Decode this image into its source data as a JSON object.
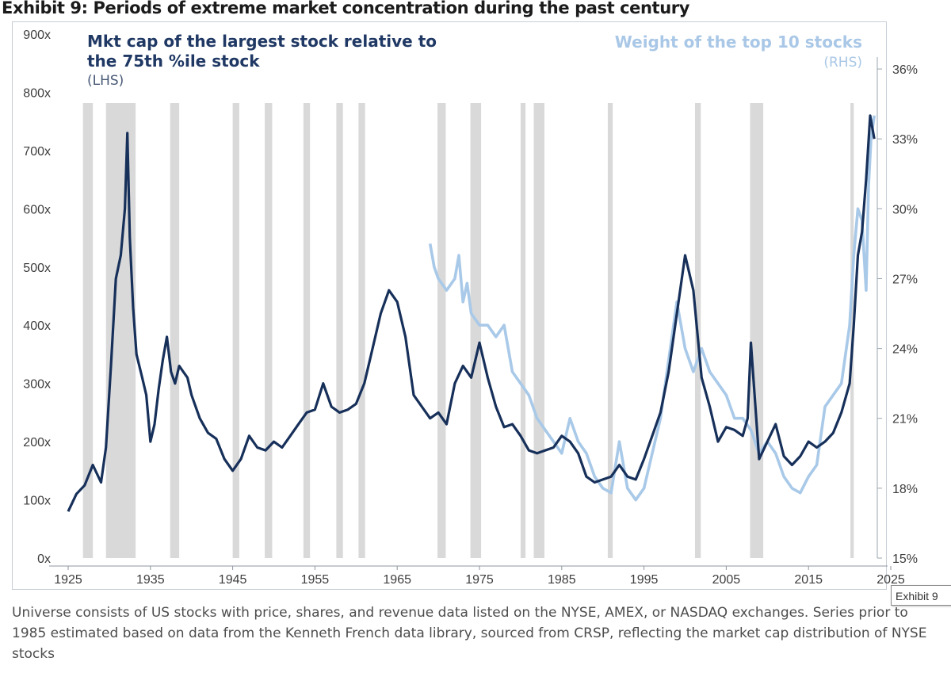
{
  "exhibit": {
    "title": "Exhibit 9: Periods of extreme market concentration during the past century",
    "tooltip": "Exhibit 9",
    "footnote": "Universe consists of US stocks with price, shares, and revenue data listed on the NYSE, AMEX, or NASDAQ exchanges. Series prior to 1985 estimated based on data from the Kenneth French data library, sourced from CRSP, reflecting the market cap distribution of NYSE stocks"
  },
  "legend": {
    "lhs_text": "Mkt cap of the largest stock relative to the 75th %ile stock",
    "lhs_side": "(LHS)",
    "rhs_text": "Weight of the top 10 stocks",
    "rhs_side": "(RHS)"
  },
  "colors": {
    "lhs_series": "#17305a",
    "rhs_series": "#a9c9e8",
    "shading": "#d9d9d9",
    "axis_text": "#3d3d3d"
  },
  "chart_data": {
    "type": "line",
    "title": "Periods of extreme market concentration during the past century",
    "x_axis": {
      "ticks": [
        1925,
        1935,
        1945,
        1955,
        1965,
        1975,
        1985,
        1995,
        2005,
        2015,
        2025
      ],
      "tick_labels": [
        "1925",
        "1935",
        "1945",
        "1955",
        "1965",
        "1975",
        "1985",
        "1995",
        "2005",
        "2015",
        "2025"
      ],
      "range": [
        1925,
        2025
      ]
    },
    "y_left": {
      "range": [
        0,
        900
      ],
      "ticks": [
        0,
        100,
        200,
        300,
        400,
        500,
        600,
        700,
        800,
        900
      ],
      "tick_labels": [
        "0x",
        "100x",
        "200x",
        "300x",
        "400x",
        "500x",
        "600x",
        "700x",
        "800x",
        "900x"
      ]
    },
    "y_right": {
      "range": [
        15,
        37.5
      ],
      "ticks": [
        15,
        18,
        21,
        24,
        27,
        30,
        33,
        36
      ],
      "tick_labels": [
        "15%",
        "18%",
        "21%",
        "24%",
        "27%",
        "30%",
        "33%",
        "36%"
      ]
    },
    "shaded_periods": [
      [
        1926.8,
        1928.0
      ],
      [
        1929.6,
        1933.2
      ],
      [
        1937.4,
        1938.5
      ],
      [
        1945.0,
        1945.8
      ],
      [
        1948.9,
        1949.8
      ],
      [
        1953.6,
        1954.4
      ],
      [
        1957.6,
        1958.4
      ],
      [
        1960.3,
        1961.1
      ],
      [
        1969.9,
        1970.9
      ],
      [
        1973.9,
        1975.2
      ],
      [
        1980.0,
        1980.6
      ],
      [
        1981.6,
        1982.9
      ],
      [
        1990.6,
        1991.2
      ],
      [
        2001.2,
        2001.9
      ],
      [
        2007.9,
        2009.5
      ],
      [
        2020.1,
        2020.5
      ]
    ],
    "series": [
      {
        "name": "Mkt cap of the largest stock relative to the 75th %ile stock",
        "axis": "left",
        "x": [
          1925.0,
          1926.0,
          1927.0,
          1928.0,
          1928.5,
          1929.0,
          1929.6,
          1930.2,
          1930.8,
          1931.4,
          1931.9,
          1932.2,
          1932.5,
          1932.9,
          1933.3,
          1934.0,
          1934.5,
          1935.0,
          1935.5,
          1936.0,
          1936.5,
          1937.0,
          1937.5,
          1938.0,
          1938.5,
          1939.0,
          1939.5,
          1940.0,
          1941.0,
          1942.0,
          1943.0,
          1944.0,
          1945.0,
          1946.0,
          1947.0,
          1948.0,
          1949.0,
          1950.0,
          1951.0,
          1952.0,
          1953.0,
          1954.0,
          1955.0,
          1956.0,
          1957.0,
          1958.0,
          1959.0,
          1960.0,
          1961.0,
          1962.0,
          1963.0,
          1964.0,
          1965.0,
          1966.0,
          1967.0,
          1968.0,
          1969.0,
          1970.0,
          1971.0,
          1972.0,
          1973.0,
          1974.0,
          1975.0,
          1976.0,
          1977.0,
          1978.0,
          1979.0,
          1980.0,
          1981.0,
          1982.0,
          1983.0,
          1984.0,
          1985.0,
          1986.0,
          1987.0,
          1988.0,
          1989.0,
          1990.0,
          1991.0,
          1992.0,
          1993.0,
          1994.0,
          1995.0,
          1996.0,
          1997.0,
          1998.0,
          1999.0,
          2000.0,
          2001.0,
          2002.0,
          2003.0,
          2004.0,
          2005.0,
          2006.0,
          2007.0,
          2007.6,
          2008.0,
          2009.0,
          2010.0,
          2011.0,
          2012.0,
          2013.0,
          2014.0,
          2015.0,
          2016.0,
          2017.0,
          2018.0,
          2019.0,
          2020.0,
          2020.5,
          2021.0,
          2021.5,
          2022.0,
          2022.5,
          2023.0
        ],
        "values": [
          80,
          110,
          125,
          160,
          145,
          130,
          190,
          330,
          480,
          520,
          600,
          730,
          550,
          430,
          350,
          310,
          280,
          200,
          230,
          290,
          340,
          380,
          320,
          300,
          330,
          320,
          310,
          280,
          240,
          215,
          205,
          170,
          150,
          170,
          210,
          190,
          185,
          200,
          190,
          210,
          230,
          250,
          255,
          300,
          260,
          250,
          255,
          265,
          300,
          360,
          420,
          460,
          440,
          380,
          280,
          260,
          240,
          250,
          230,
          300,
          330,
          310,
          370,
          310,
          260,
          225,
          230,
          210,
          185,
          180,
          185,
          190,
          210,
          200,
          180,
          140,
          130,
          135,
          140,
          160,
          140,
          135,
          170,
          210,
          250,
          320,
          420,
          520,
          460,
          310,
          260,
          200,
          225,
          220,
          210,
          240,
          370,
          170,
          200,
          230,
          175,
          160,
          175,
          200,
          190,
          200,
          215,
          250,
          300,
          400,
          520,
          560,
          650,
          760,
          720
        ]
      },
      {
        "name": "Weight of the top 10 stocks",
        "axis": "right",
        "x": [
          1969.0,
          1969.5,
          1970.0,
          1971.0,
          1972.0,
          1972.5,
          1973.0,
          1973.5,
          1974.0,
          1975.0,
          1976.0,
          1977.0,
          1978.0,
          1979.0,
          1980.0,
          1981.0,
          1982.0,
          1983.0,
          1984.0,
          1985.0,
          1986.0,
          1987.0,
          1988.0,
          1989.0,
          1990.0,
          1991.0,
          1992.0,
          1993.0,
          1994.0,
          1995.0,
          1996.0,
          1997.0,
          1998.0,
          1999.0,
          2000.0,
          2001.0,
          2002.0,
          2003.0,
          2004.0,
          2005.0,
          2006.0,
          2007.0,
          2008.0,
          2009.0,
          2010.0,
          2011.0,
          2012.0,
          2013.0,
          2014.0,
          2015.0,
          2016.0,
          2017.0,
          2018.0,
          2019.0,
          2020.0,
          2020.5,
          2021.0,
          2021.5,
          2022.0,
          2022.3,
          2022.6,
          2023.0
        ],
        "values": [
          28.5,
          27.5,
          27.0,
          26.5,
          27.0,
          28.0,
          26.0,
          26.8,
          25.5,
          25.0,
          25.0,
          24.5,
          25.0,
          23.0,
          22.5,
          22.0,
          21.0,
          20.5,
          20.0,
          19.5,
          21.0,
          20.0,
          19.5,
          18.5,
          18.0,
          17.8,
          20.0,
          18.0,
          17.5,
          18.0,
          19.5,
          21.0,
          23.5,
          26.0,
          24.0,
          23.0,
          24.0,
          23.0,
          22.5,
          22.0,
          21.0,
          21.0,
          20.5,
          19.5,
          20.0,
          19.5,
          18.5,
          18.0,
          17.8,
          18.5,
          19.0,
          21.5,
          22.0,
          22.5,
          25.0,
          28.0,
          30.0,
          29.5,
          26.5,
          31.0,
          33.0,
          34.0
        ]
      }
    ],
    "grid": false,
    "legend_position": "top"
  }
}
